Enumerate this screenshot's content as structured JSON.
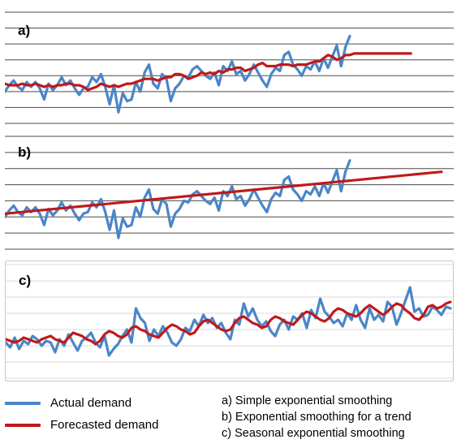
{
  "colors": {
    "actual": "#4a86c6",
    "forecast": "#c0191b",
    "grid": "#4a4a4a",
    "grid_light": "#d9d9d9"
  },
  "legend": {
    "actual_label": "Actual demand",
    "forecast_label": "Forecasted demand"
  },
  "methods": [
    "a) Simple exponential smoothing",
    "b) Exponential smoothing for a trend",
    "c) Seasonal exponential smoothing"
  ],
  "chart_data": [
    {
      "type": "line",
      "panel_label": "a)",
      "grid": true,
      "ylim": [
        0,
        7
      ],
      "x_count_actual": 80,
      "series": [
        {
          "name": "Actual demand",
          "values": [
            2.0,
            2.4,
            2.7,
            2.3,
            2.1,
            2.6,
            2.3,
            2.6,
            2.2,
            1.5,
            2.5,
            2.1,
            2.4,
            2.9,
            2.4,
            2.7,
            2.2,
            1.8,
            2.2,
            2.3,
            2.9,
            2.6,
            3.1,
            2.3,
            1.2,
            2.4,
            0.7,
            1.9,
            1.4,
            1.5,
            2.6,
            2.0,
            3.2,
            3.7,
            2.5,
            2.2,
            3.1,
            2.8,
            1.4,
            2.2,
            2.5,
            3.0,
            2.9,
            3.4,
            3.6,
            3.3,
            3.0,
            2.8,
            3.2,
            2.4,
            3.6,
            3.3,
            3.9,
            3.1,
            3.3,
            2.7,
            3.1,
            3.7,
            3.2,
            2.7,
            2.3,
            3.1,
            3.5,
            3.3,
            4.3,
            4.5,
            3.7,
            3.4,
            3.0,
            3.6,
            3.4,
            3.9,
            3.3,
            4.1,
            3.5,
            4.2,
            4.9,
            3.6,
            4.8,
            5.5
          ]
        },
        {
          "name": "Forecasted demand",
          "values": [
            2.5,
            2.4,
            2.4,
            2.4,
            2.5,
            2.4,
            2.4,
            2.5,
            2.4,
            2.3,
            2.4,
            2.3,
            2.4,
            2.4,
            2.5,
            2.5,
            2.4,
            2.4,
            2.3,
            2.1,
            2.2,
            2.3,
            2.5,
            2.4,
            2.3,
            2.4,
            2.3,
            2.4,
            2.5,
            2.5,
            2.6,
            2.7,
            2.8,
            2.8,
            2.8,
            2.7,
            2.8,
            2.9,
            2.9,
            3.1,
            3.1,
            3.0,
            2.8,
            2.9,
            3.0,
            3.2,
            3.1,
            3.2,
            3.1,
            3.3,
            3.2,
            3.4,
            3.4,
            3.5,
            3.5,
            3.3,
            3.4,
            3.5,
            3.7,
            3.8,
            3.6,
            3.6,
            3.6,
            3.7,
            3.7,
            3.7,
            3.6,
            3.7,
            3.7,
            3.7,
            3.8,
            3.9,
            3.9,
            4.1,
            4.3,
            4.2,
            4.0,
            4.1,
            4.3,
            4.3,
            4.4,
            4.4,
            4.4,
            4.4,
            4.4,
            4.4,
            4.4,
            4.4,
            4.4,
            4.4,
            4.4,
            4.4,
            4.4,
            4.4
          ]
        }
      ]
    },
    {
      "type": "line",
      "panel_label": "b)",
      "grid": true,
      "ylim": [
        0,
        7
      ],
      "x_count_actual": 80,
      "series": [
        {
          "name": "Actual demand",
          "values": [
            2.0,
            2.4,
            2.7,
            2.3,
            2.1,
            2.6,
            2.3,
            2.6,
            2.2,
            1.5,
            2.5,
            2.1,
            2.4,
            2.9,
            2.4,
            2.7,
            2.2,
            1.8,
            2.2,
            2.3,
            2.9,
            2.6,
            3.1,
            2.3,
            1.2,
            2.4,
            0.7,
            1.9,
            1.4,
            1.5,
            2.6,
            2.0,
            3.2,
            3.7,
            2.5,
            2.2,
            3.1,
            2.8,
            1.4,
            2.2,
            2.5,
            3.0,
            2.9,
            3.4,
            3.6,
            3.3,
            3.0,
            2.8,
            3.2,
            2.4,
            3.6,
            3.3,
            3.9,
            3.1,
            3.3,
            2.7,
            3.1,
            3.7,
            3.2,
            2.7,
            2.3,
            3.1,
            3.5,
            3.3,
            4.3,
            4.5,
            3.7,
            3.4,
            3.0,
            3.6,
            3.4,
            3.9,
            3.3,
            4.1,
            3.5,
            4.2,
            4.9,
            3.6,
            4.8,
            5.5
          ]
        },
        {
          "name": "Forecasted demand",
          "x_range": [
            0,
            100
          ],
          "values": [
            2.2,
            4.8
          ]
        }
      ]
    },
    {
      "type": "line",
      "panel_label": "c)",
      "grid": true,
      "ylim": [
        0,
        7
      ],
      "x_count_actual": 100,
      "series": [
        {
          "name": "Actual demand",
          "values": [
            2.2,
            1.9,
            2.5,
            1.8,
            2.3,
            2.1,
            2.6,
            2.4,
            2.0,
            2.3,
            2.2,
            1.6,
            2.4,
            2.0,
            2.7,
            2.2,
            1.7,
            2.3,
            2.5,
            2.8,
            2.2,
            1.9,
            2.6,
            1.4,
            1.8,
            2.1,
            2.6,
            3.0,
            2.2,
            4.3,
            3.7,
            3.4,
            2.3,
            3.0,
            2.6,
            3.2,
            2.8,
            2.2,
            2.0,
            2.4,
            3.1,
            2.9,
            3.6,
            3.2,
            3.9,
            3.4,
            3.7,
            3.1,
            3.4,
            2.8,
            2.4,
            3.6,
            3.3,
            4.6,
            3.8,
            4.3,
            3.6,
            3.2,
            3.5,
            2.9,
            2.6,
            3.3,
            3.6,
            3.0,
            3.8,
            3.6,
            4.0,
            3.1,
            4.2,
            3.7,
            4.9,
            4.1,
            3.8,
            3.4,
            3.6,
            3.2,
            4.0,
            3.6,
            4.5,
            3.6,
            3.1,
            4.3,
            3.6,
            3.9,
            3.5,
            4.7,
            4.4,
            3.3,
            4.0,
            4.8,
            5.6,
            4.1,
            4.3,
            3.8,
            3.9,
            4.4,
            4.2,
            3.9,
            4.4,
            4.3
          ]
        },
        {
          "name": "Forecasted demand",
          "values": [
            2.4,
            2.3,
            2.2,
            2.3,
            2.5,
            2.4,
            2.3,
            2.2,
            2.4,
            2.5,
            2.6,
            2.4,
            2.3,
            2.2,
            2.5,
            2.8,
            2.7,
            2.6,
            2.4,
            2.3,
            2.1,
            2.3,
            2.7,
            2.9,
            2.8,
            2.6,
            2.5,
            2.7,
            3.1,
            3.2,
            3.0,
            2.9,
            2.7,
            2.6,
            2.5,
            2.8,
            3.1,
            3.3,
            3.2,
            3.0,
            2.9,
            2.7,
            2.8,
            3.2,
            3.5,
            3.6,
            3.4,
            3.2,
            3.0,
            2.9,
            3.0,
            3.4,
            3.7,
            3.8,
            3.6,
            3.4,
            3.3,
            3.1,
            3.2,
            3.6,
            3.8,
            3.7,
            3.5,
            3.4,
            3.3,
            3.6,
            3.9,
            4.1,
            4.0,
            3.8,
            3.6,
            3.5,
            3.7,
            4.1,
            4.3,
            4.2,
            4.0,
            3.9,
            3.8,
            4.0,
            4.3,
            4.5,
            4.3,
            4.1,
            3.9,
            4.1,
            4.4,
            4.6,
            4.5,
            4.2,
            4.0,
            3.7,
            3.6,
            3.9,
            4.4,
            4.5,
            4.3,
            4.4,
            4.6,
            4.7
          ]
        }
      ]
    }
  ]
}
